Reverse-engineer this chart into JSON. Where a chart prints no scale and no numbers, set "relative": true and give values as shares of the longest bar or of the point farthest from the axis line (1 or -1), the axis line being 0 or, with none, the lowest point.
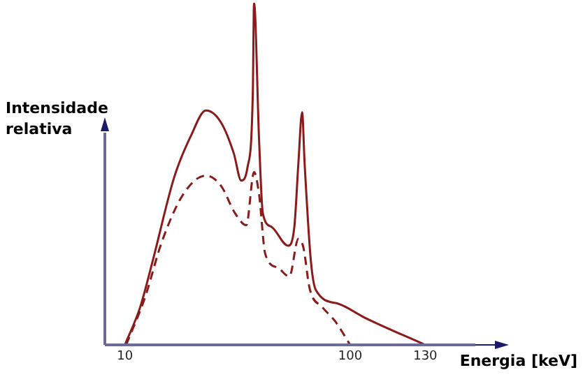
{
  "chart_data": {
    "type": "line",
    "relative": true,
    "xlabel": "Energia [keV]",
    "ylabel": "Intensidade relativa",
    "xlim": [
      2,
      150
    ],
    "xticks": [
      10,
      100,
      130
    ],
    "grid": false,
    "legend": false,
    "marker": "none",
    "series": [
      {
        "color": "#8b1a1a",
        "line_style": "solid",
        "x": [
          10,
          16.1,
          21.1,
          29.7,
          36.3,
          42.4,
          48.4,
          53.5,
          56.5,
          59.0,
          61.1,
          61.6,
          63.6,
          65.1,
          68.6,
          75.2,
          77.7,
          79.3,
          80.8,
          81.8,
          84.3,
          86.3,
          95.4,
          105.7,
          130
        ],
        "values": [
          0,
          0.11,
          0.245,
          0.49,
          0.61,
          0.685,
          0.65,
          0.56,
          0.48,
          0.52,
          0.735,
          1,
          0.6,
          0.385,
          0.345,
          0.29,
          0.345,
          0.53,
          0.68,
          0.53,
          0.245,
          0.16,
          0.12,
          0.08,
          0
        ]
      },
      {
        "color": "#8b1a1a",
        "line_style": "dashed",
        "x": [
          10.5,
          18.1,
          24.7,
          33.3,
          42.4,
          48.4,
          54.0,
          58.5,
          61.6,
          63.6,
          66.1,
          71.2,
          75.7,
          79.3,
          81.3,
          83.8,
          88.9,
          93.9,
          100
        ],
        "values": [
          0,
          0.14,
          0.3,
          0.44,
          0.495,
          0.465,
          0.385,
          0.35,
          0.505,
          0.44,
          0.265,
          0.225,
          0.2,
          0.31,
          0.285,
          0.165,
          0.11,
          0.07,
          0
        ]
      }
    ]
  }
}
